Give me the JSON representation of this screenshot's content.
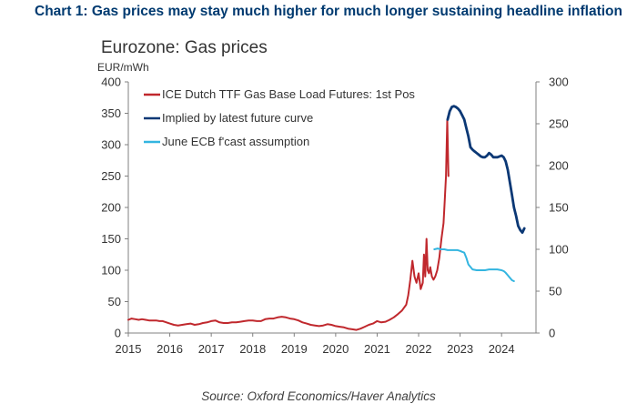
{
  "headline": "Chart 1: Gas prices may stay much higher for much longer sustaining headline inflation",
  "source": "Source: Oxford Economics/Haver Analytics",
  "colors": {
    "red": "#c0282d",
    "navy": "#0b3875",
    "light_blue": "#33b5e0",
    "headline": "#003a70",
    "axis": "#808080"
  },
  "chart_data": {
    "type": "line",
    "title": "Eurozone: Gas prices",
    "ylabel_left": "EUR/mWh",
    "xlabel": "",
    "xlim": [
      2015,
      2024.83
    ],
    "x_ticks": [
      2015,
      2016,
      2017,
      2018,
      2019,
      2020,
      2021,
      2022,
      2023,
      2024
    ],
    "x_tick_labels": [
      "2015",
      "2016",
      "2017",
      "2018",
      "2019",
      "2020",
      "2021",
      "2022",
      "2023",
      "2024"
    ],
    "ylim_left": [
      0,
      400
    ],
    "y_ticks_left": [
      0,
      50,
      100,
      150,
      200,
      250,
      300,
      350,
      400
    ],
    "y_tick_labels_left": [
      "0",
      "50",
      "100",
      "150",
      "200",
      "250",
      "300",
      "350",
      "400"
    ],
    "ylim_right": [
      0,
      300
    ],
    "y_ticks_right": [
      0,
      50,
      100,
      150,
      200,
      250,
      300
    ],
    "y_tick_labels_right": [
      "0",
      "50",
      "100",
      "150",
      "200",
      "250",
      "300"
    ],
    "legend_position": "top-left",
    "series": [
      {
        "name": "ICE Dutch TTF Gas Base Load Futures: 1st Pos",
        "axis": "left",
        "color": "#c0282d",
        "x": [
          2015.0,
          2015.08,
          2015.17,
          2015.25,
          2015.33,
          2015.42,
          2015.5,
          2015.58,
          2015.67,
          2015.75,
          2015.83,
          2015.92,
          2016.0,
          2016.1,
          2016.2,
          2016.3,
          2016.4,
          2016.5,
          2016.6,
          2016.7,
          2016.8,
          2016.9,
          2017.0,
          2017.1,
          2017.2,
          2017.3,
          2017.4,
          2017.5,
          2017.6,
          2017.7,
          2017.8,
          2017.9,
          2018.0,
          2018.1,
          2018.2,
          2018.3,
          2018.4,
          2018.5,
          2018.6,
          2018.7,
          2018.8,
          2018.9,
          2019.0,
          2019.1,
          2019.2,
          2019.3,
          2019.4,
          2019.5,
          2019.6,
          2019.7,
          2019.8,
          2019.9,
          2020.0,
          2020.1,
          2020.2,
          2020.3,
          2020.4,
          2020.5,
          2020.6,
          2020.7,
          2020.8,
          2020.9,
          2021.0,
          2021.1,
          2021.2,
          2021.3,
          2021.4,
          2021.5,
          2021.6,
          2021.7,
          2021.75,
          2021.8,
          2021.85,
          2021.9,
          2021.95,
          2022.0,
          2022.05,
          2022.1,
          2022.13,
          2022.16,
          2022.19,
          2022.22,
          2022.25,
          2022.28,
          2022.32,
          2022.36,
          2022.4,
          2022.45,
          2022.5,
          2022.55,
          2022.6,
          2022.63,
          2022.66,
          2022.69,
          2022.72
        ],
        "values": [
          21,
          23,
          22,
          21,
          22,
          21,
          20,
          20,
          20,
          19,
          19,
          17,
          15,
          13,
          12,
          13,
          14,
          15,
          13,
          14,
          16,
          17,
          19,
          20,
          17,
          16,
          16,
          17,
          17,
          18,
          19,
          20,
          20,
          19,
          19,
          22,
          23,
          23,
          25,
          26,
          25,
          23,
          22,
          20,
          17,
          15,
          13,
          12,
          11,
          12,
          14,
          13,
          11,
          10,
          9,
          7,
          6,
          5,
          7,
          10,
          13,
          15,
          19,
          17,
          18,
          21,
          25,
          30,
          36,
          45,
          60,
          85,
          115,
          90,
          80,
          95,
          70,
          80,
          125,
          90,
          150,
          100,
          95,
          105,
          90,
          85,
          90,
          100,
          120,
          150,
          175,
          210,
          250,
          340,
          250
        ]
      },
      {
        "name": "Implied by latest future curve",
        "axis": "right",
        "color": "#0b3875",
        "x": [
          2022.7,
          2022.75,
          2022.8,
          2022.85,
          2022.9,
          2022.95,
          2023.0,
          2023.05,
          2023.1,
          2023.15,
          2023.2,
          2023.25,
          2023.3,
          2023.35,
          2023.4,
          2023.45,
          2023.5,
          2023.55,
          2023.6,
          2023.65,
          2023.7,
          2023.75,
          2023.8,
          2023.85,
          2023.9,
          2023.95,
          2024.0,
          2024.05,
          2024.1,
          2024.15,
          2024.2,
          2024.25,
          2024.3,
          2024.35,
          2024.4,
          2024.45,
          2024.5,
          2024.55
        ],
        "values": [
          255,
          265,
          270,
          271,
          270,
          268,
          265,
          260,
          255,
          245,
          235,
          222,
          219,
          217,
          215,
          213,
          211,
          210,
          210,
          212,
          215,
          213,
          210,
          210,
          210,
          211,
          212,
          210,
          205,
          195,
          180,
          165,
          150,
          140,
          128,
          123,
          120,
          125
        ]
      },
      {
        "name": "June ECB f'cast assumption",
        "axis": "right",
        "color": "#33b5e0",
        "x": [
          2022.38,
          2022.46,
          2022.54,
          2022.62,
          2022.7,
          2022.78,
          2022.86,
          2022.94,
          2023.0,
          2023.05,
          2023.1,
          2023.15,
          2023.2,
          2023.3,
          2023.4,
          2023.5,
          2023.6,
          2023.7,
          2023.8,
          2023.9,
          2024.0,
          2024.05,
          2024.1,
          2024.15,
          2024.2,
          2024.25,
          2024.3
        ],
        "values": [
          100,
          101,
          100,
          100,
          99,
          99,
          99,
          99,
          98,
          97,
          96,
          90,
          82,
          76,
          75,
          75,
          75,
          76,
          76,
          76,
          75,
          74,
          72,
          69,
          66,
          63,
          62
        ]
      }
    ]
  }
}
